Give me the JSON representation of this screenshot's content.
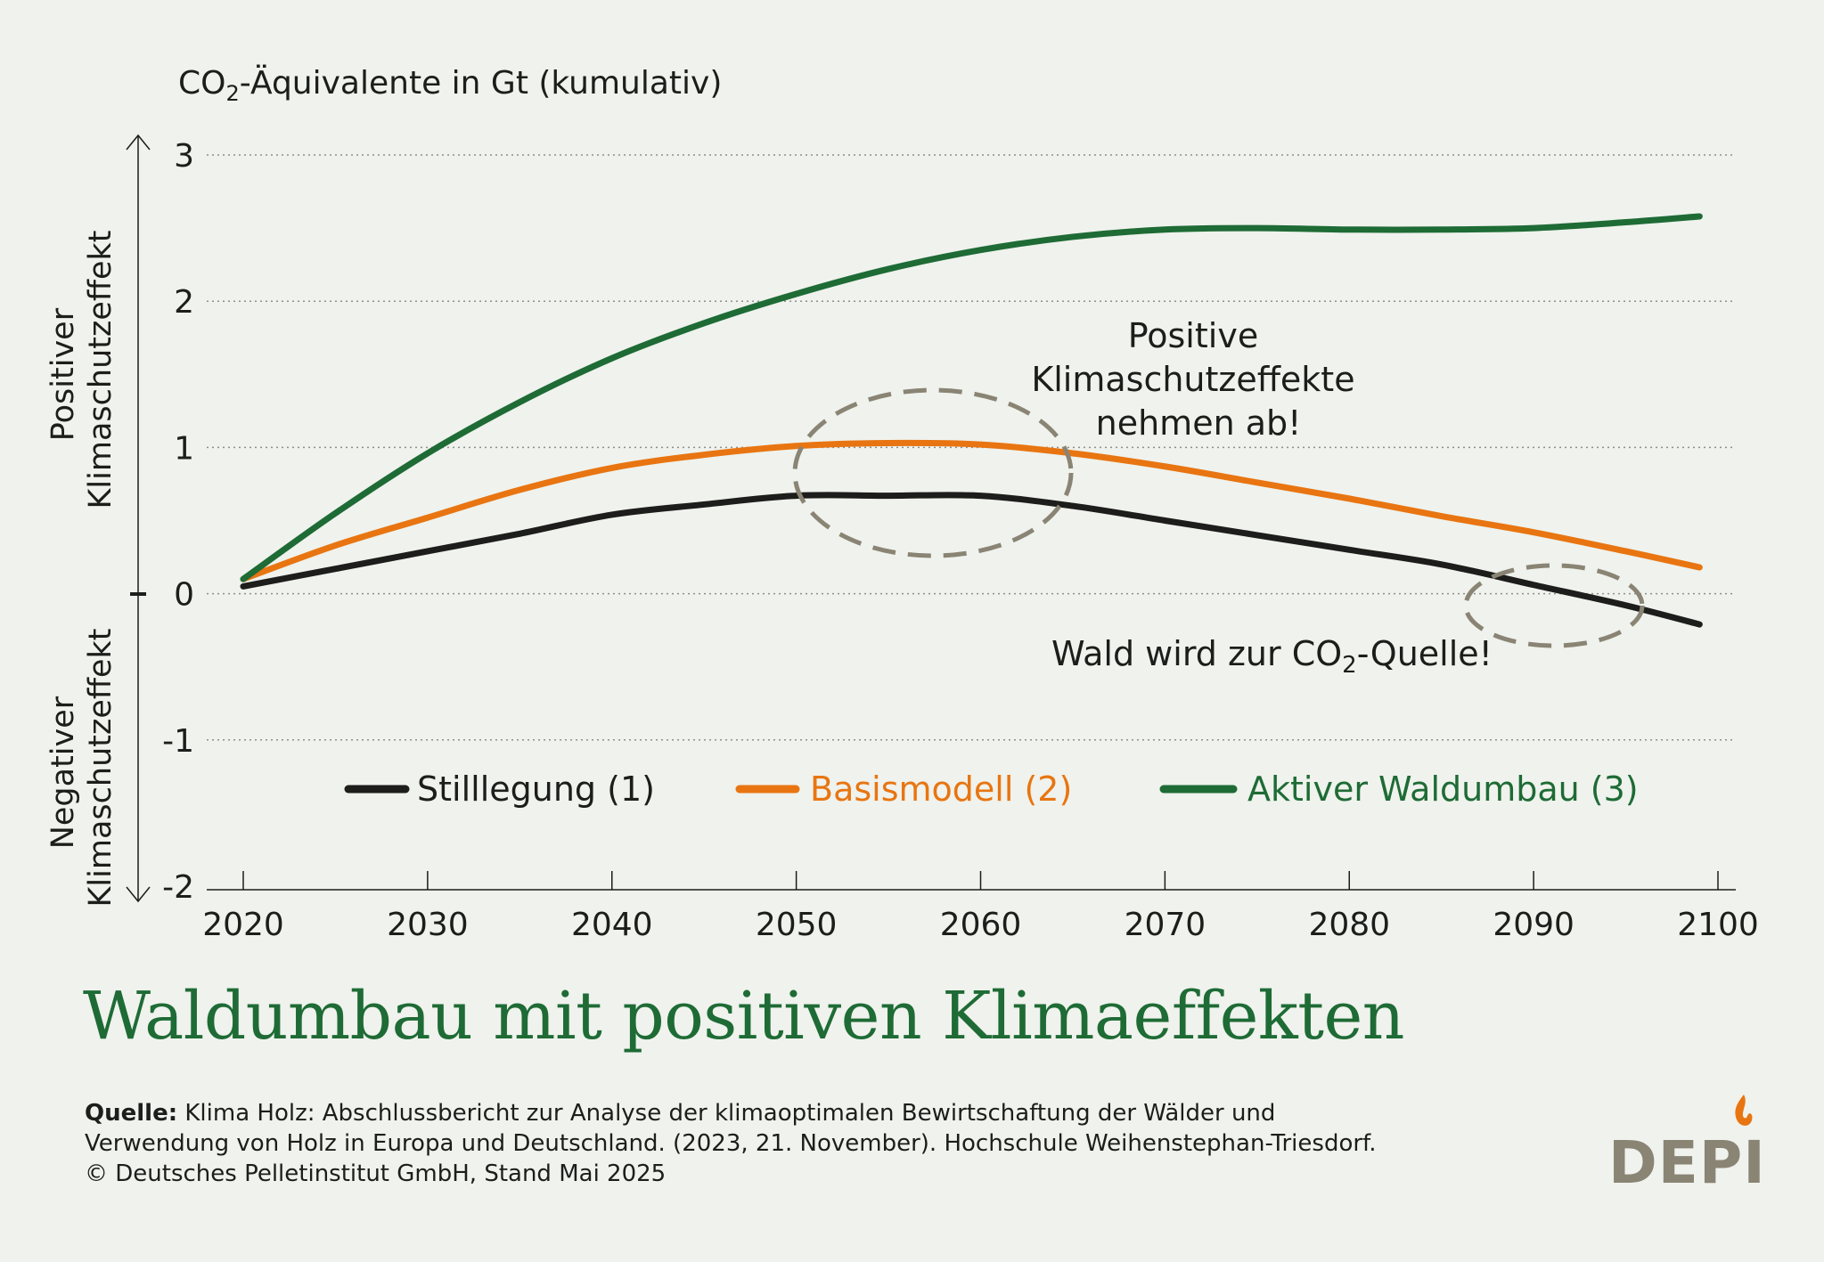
{
  "chart_data": {
    "type": "line",
    "ylabel_prefix": "CO",
    "ylabel_sub": "2",
    "ylabel_rest": "-Äquivalente in Gt (kumulativ)",
    "positive_label": [
      "Positiver",
      "Klimaschutzeffekt"
    ],
    "negative_label": [
      "Negativer",
      "Klimaschutzeffekt"
    ],
    "xlim": [
      2020,
      2100
    ],
    "ylim": [
      -2,
      3
    ],
    "xticks": [
      2020,
      2030,
      2040,
      2050,
      2060,
      2070,
      2080,
      2090,
      2100
    ],
    "yticks": [
      3,
      2,
      1,
      0,
      -1,
      -2
    ],
    "grid": true,
    "series": [
      {
        "name": "Stilllegung (1)",
        "color": "#1d1d1b",
        "x": [
          2020,
          2025,
          2030,
          2035,
          2040,
          2045,
          2050,
          2055,
          2060,
          2065,
          2070,
          2075,
          2080,
          2085,
          2090,
          2095,
          2099
        ],
        "y": [
          0.05,
          0.17,
          0.29,
          0.41,
          0.54,
          0.61,
          0.67,
          0.67,
          0.67,
          0.6,
          0.5,
          0.4,
          0.3,
          0.2,
          0.06,
          -0.08,
          -0.21
        ]
      },
      {
        "name": "Basismodell (2)",
        "color": "#e87511",
        "x": [
          2020,
          2025,
          2030,
          2035,
          2040,
          2045,
          2050,
          2055,
          2060,
          2065,
          2070,
          2075,
          2080,
          2085,
          2090,
          2095,
          2099
        ],
        "y": [
          0.1,
          0.33,
          0.52,
          0.71,
          0.86,
          0.95,
          1.01,
          1.03,
          1.02,
          0.96,
          0.87,
          0.76,
          0.65,
          0.53,
          0.42,
          0.29,
          0.18
        ]
      },
      {
        "name": "Aktiver Waldumbau (3)",
        "color": "#1e6b35",
        "x": [
          2020,
          2025,
          2030,
          2035,
          2040,
          2045,
          2050,
          2055,
          2060,
          2065,
          2070,
          2075,
          2080,
          2085,
          2090,
          2095,
          2099
        ],
        "y": [
          0.1,
          0.55,
          0.96,
          1.31,
          1.61,
          1.85,
          2.05,
          2.22,
          2.35,
          2.44,
          2.49,
          2.5,
          2.49,
          2.49,
          2.5,
          2.54,
          2.58
        ]
      }
    ],
    "annotations": {
      "positive_effects": [
        "Positive",
        "Klimaschutzeffekte",
        "nehmen ab!"
      ],
      "source_prefix": "Wald wird zur CO",
      "source_sub": "2",
      "source_rest": "-Quelle!"
    }
  },
  "title": "Waldumbau mit positiven Klimaeffekten",
  "source": {
    "label": "Quelle:",
    "line1": " Klima Holz: Abschlussbericht zur Analyse der klimaoptimalen Bewirtschaftung der Wälder und",
    "line2": "Verwendung von Holz in Europa und Deutschland. (2023, 21. November). Hochschule Weihenstephan-Triesdorf.",
    "line3": "© Deutsches Pelletinstitut GmbH, Stand Mai 2025"
  },
  "logo": "DEPI",
  "colors": {
    "background": "#eff2ed",
    "title": "#1e6b35",
    "annotation_ellipse": "#8a8474"
  }
}
